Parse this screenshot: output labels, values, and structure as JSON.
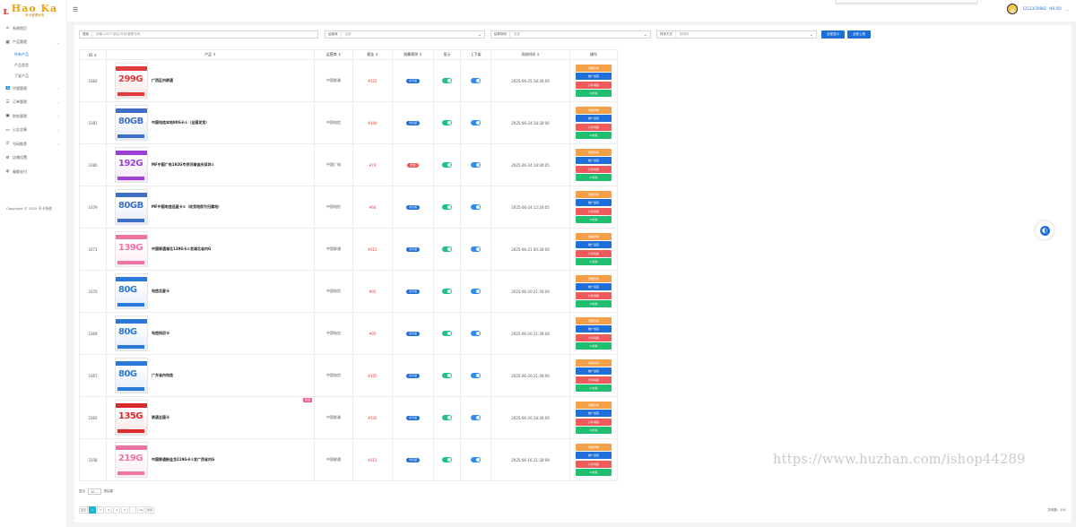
{
  "brand": {
    "title": "Hao Ka",
    "subtitle": "号卡管理系统"
  },
  "sidebar": {
    "items": [
      {
        "icon": "home-icon",
        "glyph": "⌂",
        "label": "系统首页"
      },
      {
        "icon": "grid-icon",
        "glyph": "▦",
        "label": "产品管理",
        "chevron": "⌄",
        "children": [
          "所有产品",
          "产品类型",
          "下架产品"
        ]
      },
      {
        "icon": "users-icon",
        "glyph": "👥",
        "label": "代理管理",
        "chevron": "›"
      },
      {
        "icon": "list-icon",
        "glyph": "☰",
        "label": "订单管理",
        "chevron": "›"
      },
      {
        "icon": "wallet-icon",
        "glyph": "▣",
        "label": "财务管理",
        "chevron": "›"
      },
      {
        "icon": "message-icon",
        "glyph": "▭",
        "label": "公告文章",
        "chevron": "›"
      },
      {
        "icon": "wechat-icon",
        "glyph": "✆",
        "label": "号码推荐",
        "chevron": "›"
      },
      {
        "icon": "settings-icon",
        "glyph": "⚙",
        "label": "店铺设置"
      },
      {
        "icon": "tool-icon",
        "glyph": "◍",
        "label": "秦都支付"
      }
    ],
    "active_child": "所有产品",
    "copyright": "Copyright © 2025 号卡系统"
  },
  "topbar": {
    "menu_icon": "☰",
    "user": "12123/20882（¥0.00）",
    "user_chevron": "⌄"
  },
  "filters": {
    "search": {
      "label": "搜索",
      "placeholder": "请输入ID/产品名/号段/套餐名称"
    },
    "operator": {
      "label": "运营商",
      "value": "全部"
    },
    "sort": {
      "label": "结算规则",
      "value": "全部"
    },
    "status": {
      "label": "排序方式",
      "value": "按排序"
    },
    "caret": "⌄",
    "btn_show_all": "全部显示",
    "btn_all_up": "全部上架"
  },
  "table": {
    "headers": [
      "ID ⇕",
      "产品 ⇕",
      "运营商 ⇕",
      "佣金 ⇕",
      "结算规则 ⇕",
      "显示",
      "上下架",
      "添加时间 ⇕",
      "操作"
    ],
    "ops": [
      "查看详情",
      "推广链接",
      "分享海报",
      "AI文案"
    ],
    "rows": [
      {
        "id": "3382",
        "thumb": "299G",
        "thumb_color": "#e33b3b",
        "name": "广西区内联通",
        "operator": "中国联通",
        "price": "¥125",
        "rule": "次月返",
        "rule_color": "#1e6fd9",
        "time": "2025-06-25 18:30:06",
        "hot": ""
      },
      {
        "id": "3381",
        "thumb": "80GB",
        "thumb_color": "#3d6fc6",
        "name": "中国电信本地80G卡①（全国发货）",
        "operator": "中国电信",
        "price": "¥140",
        "rule": "次月返",
        "rule_color": "#1e6fd9",
        "time": "2025-06-24 18:30:06",
        "hot": ""
      },
      {
        "id": "3380",
        "thumb": "192G",
        "thumb_color": "#9c3fd4",
        "name": "MF中国广电192G专供河南省庆深圳②",
        "operator": "中国广电",
        "price": "¥74",
        "rule": "秒返",
        "rule_color": "#ef5a5a",
        "time": "2025-06-24 18:30:05",
        "hot": ""
      },
      {
        "id": "3379",
        "thumb": "80GB",
        "thumb_color": "#3d6fc6",
        "name": "MF中国电信巡星卡②（收货地即为归属地）",
        "operator": "中国电信",
        "price": "¥66",
        "rule": "次月返",
        "rule_color": "#1e6fd9",
        "time": "2025-06-24 12:20:05",
        "hot": ""
      },
      {
        "id": "3371",
        "thumb": "139G",
        "thumb_color": "#ef73a3",
        "name": "中国联通湖北139G卡①发湖北省内G",
        "operator": "中国联通",
        "price": "¥215",
        "rule": "次月返",
        "rule_color": "#1e6fd9",
        "time": "2025-06-21 00:30:06",
        "hot": ""
      },
      {
        "id": "3370",
        "thumb": "80G",
        "thumb_color": "#2a78d8",
        "name": "电信吉星卡",
        "operator": "中国电信",
        "price": "¥95",
        "rule": "次月返",
        "rule_color": "#1e6fd9",
        "time": "2025-06-20 21:30:09",
        "hot": ""
      },
      {
        "id": "3369",
        "thumb": "80G",
        "thumb_color": "#2a78d8",
        "name": "电信知初卡",
        "operator": "中国电信",
        "price": "¥95",
        "rule": "次月返",
        "rule_color": "#1e6fd9",
        "time": "2025-06-20 21:30:08",
        "hot": ""
      },
      {
        "id": "3367",
        "thumb": "80G",
        "thumb_color": "#2a78d8",
        "name": "广东省内电信",
        "operator": "中国电信",
        "price": "¥105",
        "rule": "次月返",
        "rule_color": "#1e6fd9",
        "time": "2025-06-20 21:30:06",
        "hot": ""
      },
      {
        "id": "3365",
        "thumb": "135G",
        "thumb_color": "#d92b2b",
        "name": "联通全国卡",
        "operator": "中国联通",
        "price": "¥145",
        "rule": "次月返",
        "rule_color": "#1e6fd9",
        "time": "2025-06-20 18:30:06",
        "hot": "热销"
      },
      {
        "id": "3358",
        "thumb": "219G",
        "thumb_color": "#ef73a3",
        "name": "中国联通新金龙219G卡①发广西省内G",
        "operator": "中国联通",
        "price": "¥213",
        "rule": "次月返",
        "rule_color": "#1e6fd9",
        "time": "2025-06-16 21:30:09",
        "hot": ""
      }
    ]
  },
  "pagination": {
    "show_label": "显示",
    "page_size": "10",
    "unit": "项结果",
    "pages": [
      "首页",
      "1",
      "2",
      "3",
      "4",
      "5",
      "...",
      "19",
      "尾页"
    ],
    "current": "1",
    "total": "共有数：191"
  },
  "colors": {
    "accent": "#1e6fd9",
    "toggle_on_green": "#1fbf8f",
    "toggle_on_blue": "#2f8cf5",
    "op_detail": "#f5a048",
    "op_link": "#1e6fd9",
    "op_poster": "#ef5a5a",
    "op_ai": "#1fbf6f"
  },
  "watermark": "https://www.huzhan.com/ishop44289"
}
